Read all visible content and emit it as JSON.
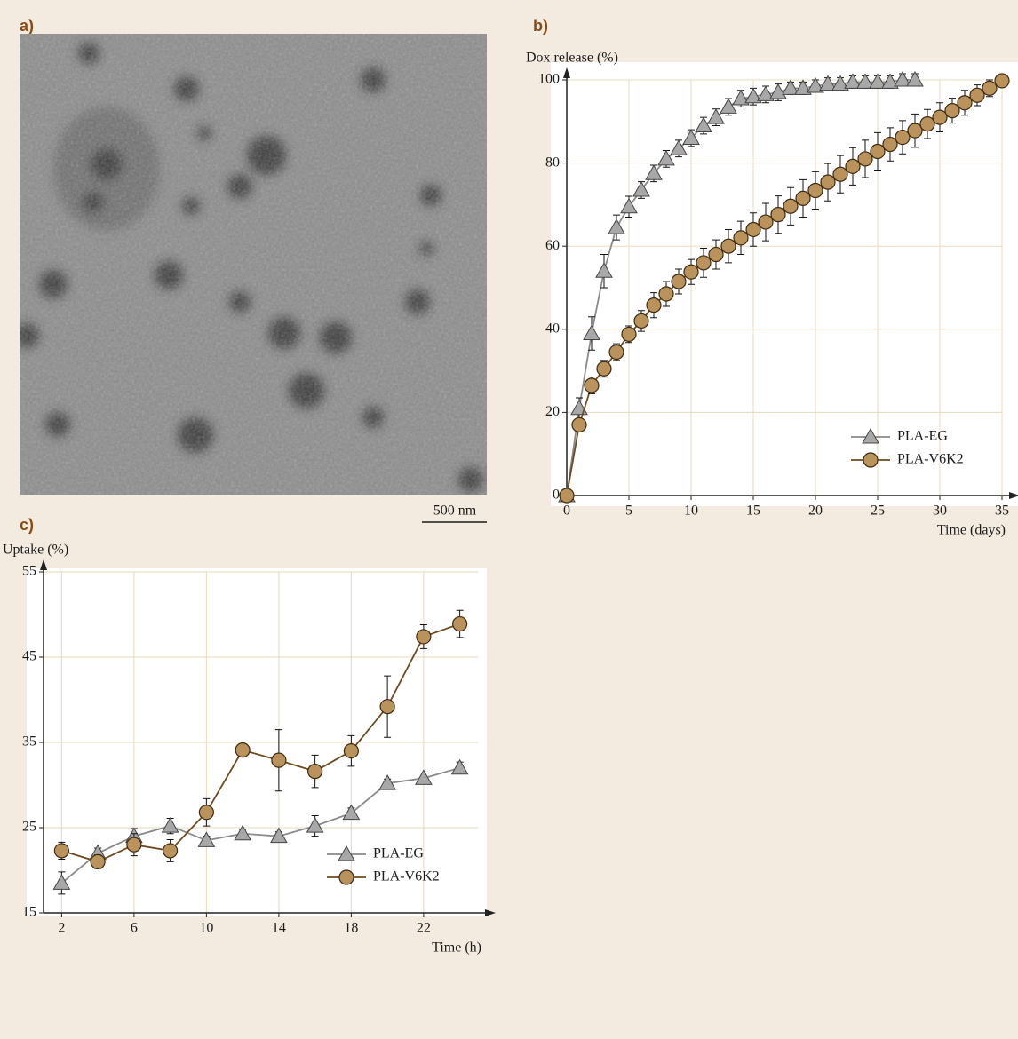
{
  "panel_a": {
    "label": "a)",
    "scale_bar": "500 nm"
  },
  "chart_data": [
    {
      "type": "line",
      "panel_label": "b)",
      "y_label": "Dox release (%)",
      "x_label": "Time (days)",
      "xlim": [
        0,
        35
      ],
      "ylim": [
        0,
        100
      ],
      "xticks": [
        0,
        5,
        10,
        15,
        20,
        25,
        30,
        35
      ],
      "yticks": [
        0,
        20,
        40,
        60,
        80,
        100
      ],
      "grid": true,
      "legend": "lower right",
      "series": [
        {
          "name": "PLA-EG",
          "marker": "triangle",
          "color": "#a8a8a8",
          "line_color": "#8a8a8a",
          "x": [
            0,
            1,
            2,
            3,
            4,
            5,
            6,
            7,
            8,
            9,
            10,
            11,
            12,
            13,
            14,
            15,
            16,
            17,
            18,
            19,
            20,
            21,
            22,
            23,
            24,
            25,
            26,
            27,
            28
          ],
          "values": [
            0,
            21,
            39,
            54,
            64.5,
            69.5,
            73.5,
            77.5,
            81,
            83.5,
            86,
            89,
            91,
            93.5,
            95.5,
            96,
            96.5,
            97,
            98,
            98,
            98.5,
            99,
            99,
            99.5,
            99.5,
            99.5,
            99.5,
            100,
            100
          ],
          "errors": [
            0,
            2.5,
            4,
            4,
            3,
            2.5,
            2,
            2,
            2,
            2,
            2,
            2,
            2,
            2,
            2,
            2,
            2,
            2,
            1.5,
            1.5,
            1.5,
            1.5,
            1.5,
            1.5,
            1.5,
            1.5,
            1.5,
            1.5,
            1.5
          ]
        },
        {
          "name": "PLA-V6K2",
          "marker": "circle",
          "color": "#b9925c",
          "line_color": "#6e4a1e",
          "x": [
            0,
            1,
            2,
            3,
            4,
            5,
            6,
            7,
            8,
            9,
            10,
            11,
            12,
            13,
            14,
            15,
            16,
            17,
            18,
            19,
            20,
            21,
            22,
            23,
            24,
            25,
            26,
            27,
            28,
            29,
            30,
            31,
            32,
            33,
            34,
            35
          ],
          "values": [
            0,
            17,
            26.5,
            30.5,
            34.5,
            38.8,
            42,
            45.8,
            48.5,
            51.5,
            53.8,
            56,
            58,
            60,
            62,
            64,
            65.8,
            67.6,
            69.6,
            71.5,
            73.4,
            75.4,
            77.3,
            79.2,
            81,
            82.8,
            84.5,
            86.2,
            87.8,
            89.4,
            91,
            92.6,
            94.5,
            96.3,
            98,
            99.8
          ],
          "errors": [
            0,
            1.5,
            2,
            2,
            2,
            2,
            2.5,
            3,
            3,
            3,
            3,
            3.5,
            3.5,
            4,
            4,
            4,
            4.5,
            4.5,
            4.5,
            4.5,
            4.5,
            4.5,
            4.5,
            4.5,
            4.5,
            4.5,
            4,
            4,
            4,
            3.5,
            3.5,
            3,
            3,
            2.5,
            2,
            1.5
          ]
        }
      ]
    },
    {
      "type": "line",
      "panel_label": "c)",
      "y_label": "Uptake (%)",
      "x_label": "Time (h)",
      "xlim": [
        1,
        25
      ],
      "ylim": [
        15,
        55
      ],
      "xticks": [
        2,
        6,
        10,
        14,
        18,
        22
      ],
      "yticks": [
        15,
        25,
        35,
        45,
        55
      ],
      "grid": true,
      "legend": "lower right",
      "series": [
        {
          "name": "PLA-EG",
          "marker": "triangle",
          "color": "#a8a8a8",
          "line_color": "#8a8a8a",
          "x": [
            2,
            4,
            6,
            8,
            10,
            12,
            14,
            16,
            18,
            20,
            22,
            24
          ],
          "values": [
            18.5,
            22,
            24,
            25.2,
            23.5,
            24.3,
            24,
            25.2,
            26.7,
            30.2,
            30.8,
            32
          ],
          "errors": [
            1.3,
            0.6,
            0.9,
            0.9,
            0.5,
            0.5,
            0.5,
            1.2,
            0.6,
            0.5,
            0.6,
            0.7
          ]
        },
        {
          "name": "PLA-V6K2",
          "marker": "circle",
          "color": "#b9925c",
          "line_color": "#6e4a1e",
          "x": [
            2,
            4,
            6,
            8,
            10,
            12,
            14,
            16,
            18,
            20,
            22,
            24
          ],
          "values": [
            22.3,
            21,
            23,
            22.3,
            26.8,
            34.1,
            32.9,
            31.6,
            34,
            39.2,
            47.4,
            48.9
          ],
          "errors": [
            1,
            0.8,
            1.3,
            1.3,
            1.6,
            0.6,
            3.6,
            1.9,
            1.8,
            3.6,
            1.4,
            1.6
          ]
        }
      ]
    }
  ]
}
